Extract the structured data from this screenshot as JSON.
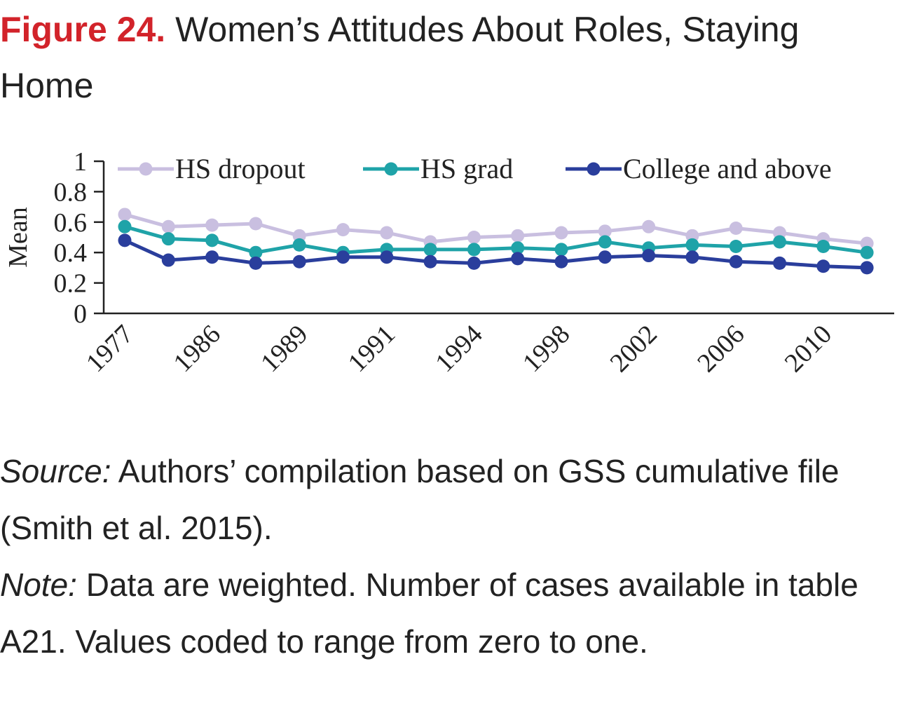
{
  "figure": {
    "label": "Figure 24.",
    "title": "Women’s Attitudes About Roles, Staying Home"
  },
  "notes": {
    "source_label": "Source:",
    "source_text": "Authors’ compilation based on GSS cumulative file (Smith et al. 2015).",
    "note_label": "Note:",
    "note_text": "Data are weighted. Number of cases available in table A21. Values coded to range from zero to one."
  },
  "chart_data": {
    "type": "line",
    "xlabel": "",
    "ylabel": "Mean",
    "ylim": [
      0,
      1
    ],
    "yticks": [
      "0",
      "0.2",
      "0.4",
      "0.6",
      "0.8",
      "1"
    ],
    "categories": [
      "1977",
      "",
      "1986",
      "",
      "1989",
      "",
      "1991",
      "",
      "1994",
      "",
      "1998",
      "",
      "2002",
      "",
      "2006",
      "",
      "2010",
      ""
    ],
    "grid": false,
    "legend": "top",
    "series": [
      {
        "name": "HS dropout",
        "color": "#c9bfe0",
        "values": [
          0.65,
          0.57,
          0.58,
          0.59,
          0.51,
          0.55,
          0.53,
          0.47,
          0.5,
          0.51,
          0.53,
          0.54,
          0.57,
          0.51,
          0.56,
          0.53,
          0.49,
          0.46
        ]
      },
      {
        "name": "HS grad",
        "color": "#1fa3a8",
        "values": [
          0.57,
          0.49,
          0.48,
          0.4,
          0.45,
          0.4,
          0.42,
          0.42,
          0.42,
          0.43,
          0.42,
          0.47,
          0.43,
          0.45,
          0.44,
          0.47,
          0.44,
          0.4
        ]
      },
      {
        "name": "College and above",
        "color": "#2a3e9c",
        "values": [
          0.48,
          0.35,
          0.37,
          0.33,
          0.34,
          0.37,
          0.37,
          0.34,
          0.33,
          0.36,
          0.34,
          0.37,
          0.38,
          0.37,
          0.34,
          0.33,
          0.31,
          0.3
        ]
      }
    ]
  }
}
